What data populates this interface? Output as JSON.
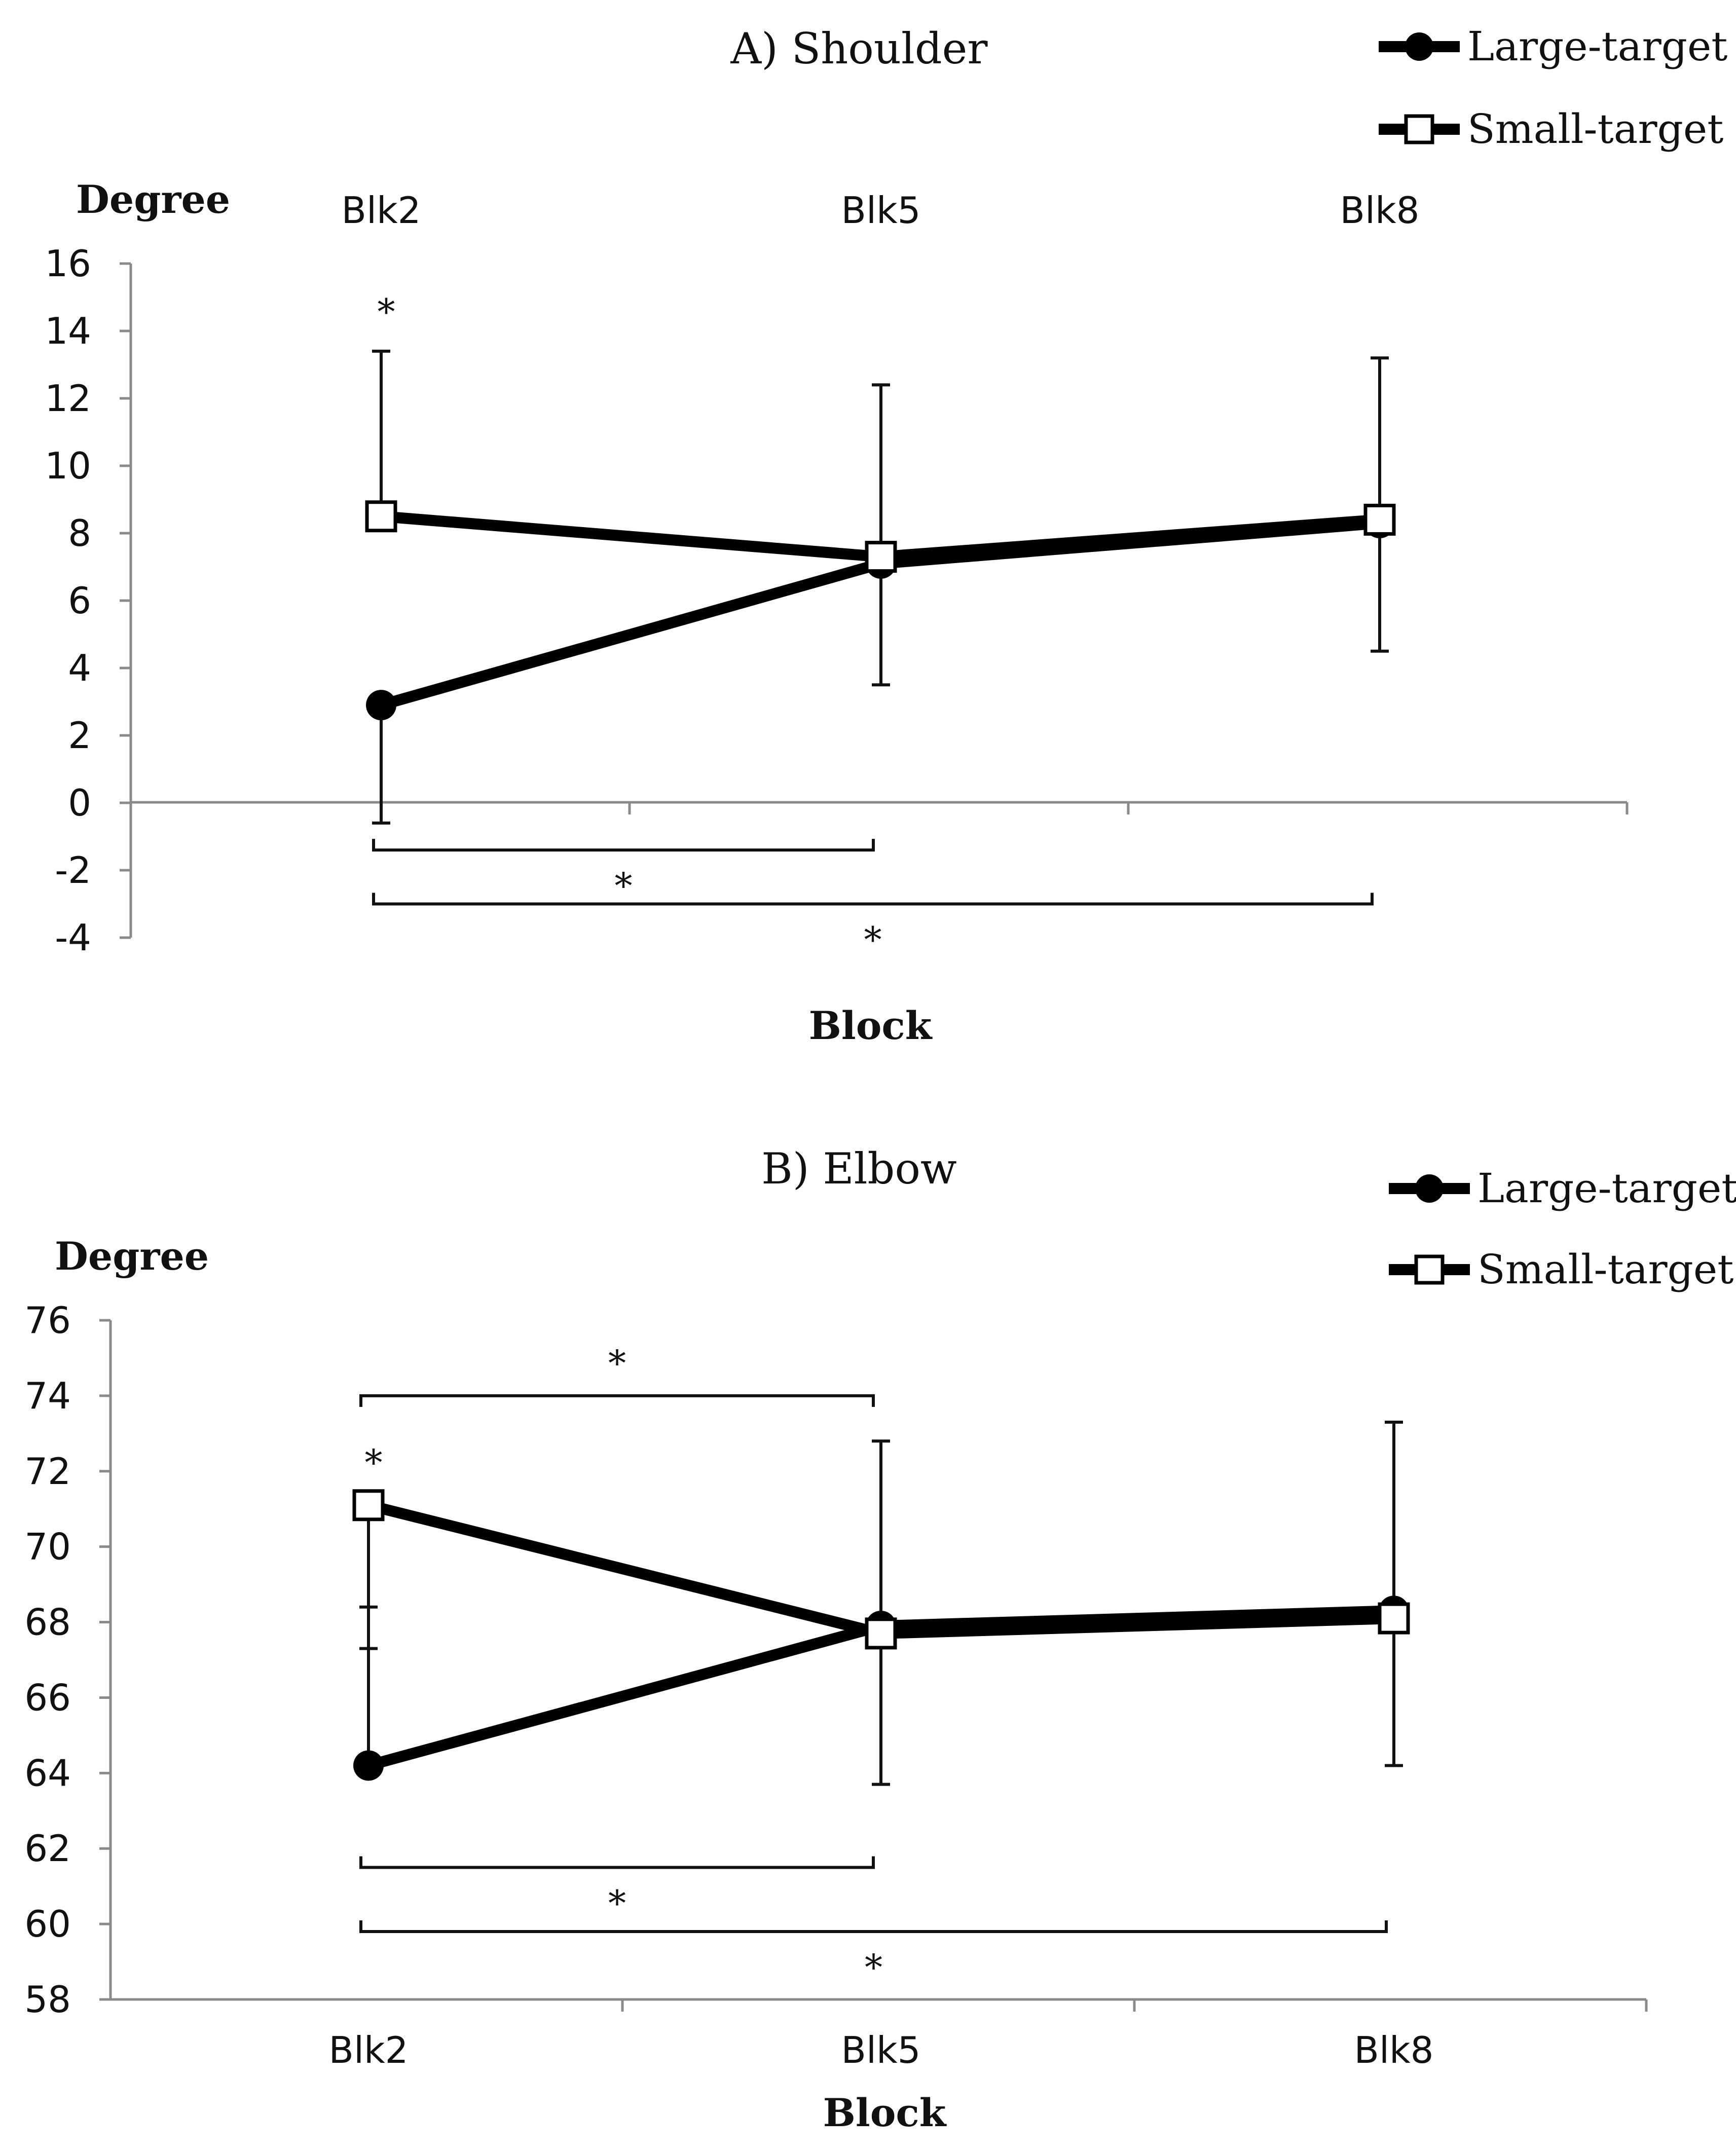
{
  "chart_data": [
    {
      "type": "line",
      "title": "A) Shoulder",
      "ylabel": "Degree",
      "xlabel": "Block",
      "categories": [
        "Blk2",
        "Blk5",
        "Blk8"
      ],
      "category_labels_position": "top",
      "ylim": [
        -4,
        16
      ],
      "yticks": [
        "16",
        "14",
        "12",
        "10",
        "8",
        "6",
        "4",
        "2",
        "0",
        "-2",
        "-4"
      ],
      "series": [
        {
          "name": "Large-target",
          "marker": "filled-circle",
          "values": [
            2.9,
            7.1,
            8.3
          ],
          "err_high": [
            null,
            null,
            null
          ],
          "err_low": [
            -0.6,
            3.5,
            4.5
          ]
        },
        {
          "name": "Small-target",
          "marker": "open-square",
          "values": [
            8.5,
            7.3,
            8.4
          ],
          "err_high": [
            13.4,
            12.4,
            13.2
          ],
          "err_low": [
            null,
            null,
            null
          ]
        }
      ],
      "annotations": [
        {
          "text": "*",
          "kind": "point",
          "cat": 0,
          "y": 14.2
        },
        {
          "text": "*",
          "kind": "bracket",
          "from": 0,
          "to": 1,
          "y": -1.4
        },
        {
          "text": "*",
          "kind": "bracket",
          "from": 0,
          "to": 2,
          "y": -3.0
        }
      ]
    },
    {
      "type": "line",
      "title": "B) Elbow",
      "ylabel": "Degree",
      "xlabel": "Block",
      "categories": [
        "Blk2",
        "Blk5",
        "Blk8"
      ],
      "category_labels_position": "bottom",
      "ylim": [
        58,
        76
      ],
      "yticks": [
        "76",
        "74",
        "72",
        "70",
        "68",
        "66",
        "64",
        "62",
        "60",
        "58"
      ],
      "series": [
        {
          "name": "Large-target",
          "marker": "filled-circle",
          "values": [
            64.2,
            67.9,
            68.3
          ],
          "err_high": [
            68.4,
            72.8,
            73.3
          ],
          "err_low": [
            null,
            null,
            null
          ]
        },
        {
          "name": "Small-target",
          "marker": "open-square",
          "values": [
            71.1,
            67.7,
            68.1
          ],
          "err_high": [
            null,
            null,
            null
          ],
          "err_low": [
            67.3,
            63.7,
            64.2
          ]
        }
      ],
      "annotations": [
        {
          "text": "*",
          "kind": "bracket-top",
          "from": 0,
          "to": 1,
          "y": 74.0
        },
        {
          "text": "*",
          "kind": "point",
          "cat": 0,
          "y": 71.9
        },
        {
          "text": "*",
          "kind": "bracket",
          "from": 0,
          "to": 1,
          "y": 61.5
        },
        {
          "text": "*",
          "kind": "bracket",
          "from": 0,
          "to": 2,
          "y": 59.8
        }
      ]
    }
  ]
}
